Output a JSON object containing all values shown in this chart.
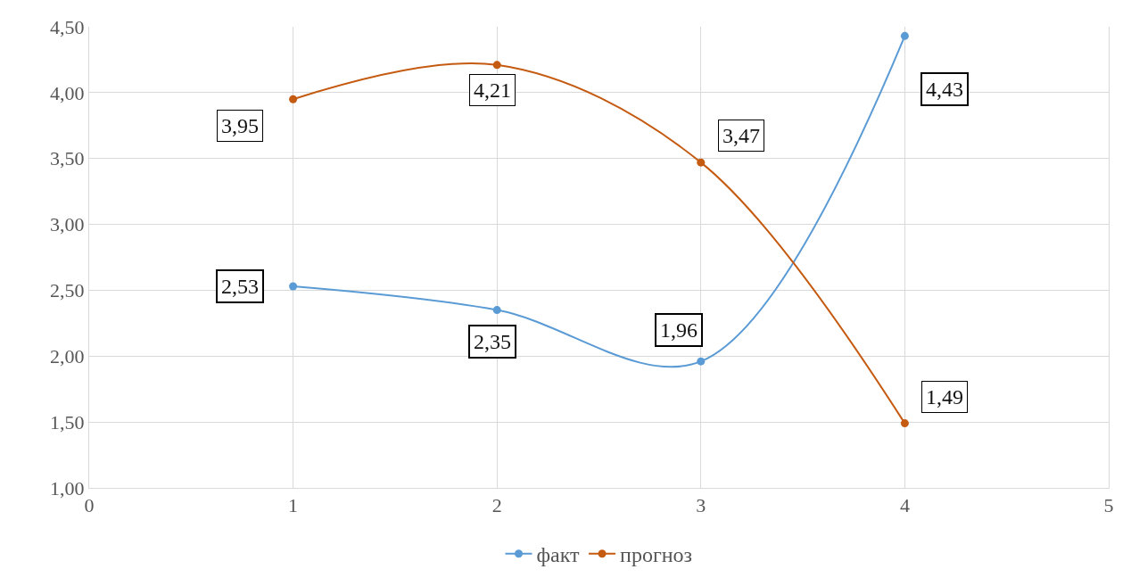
{
  "chart_data": {
    "type": "line",
    "x": [
      1,
      2,
      3,
      4
    ],
    "series": [
      {
        "name": "факт",
        "color": "#5b9bd5",
        "values": [
          2.53,
          2.35,
          1.96,
          4.43
        ],
        "value_labels": [
          "2,53",
          "2,35",
          "1,96",
          "4,43"
        ]
      },
      {
        "name": "прогноз",
        "color": "#c55a11",
        "values": [
          3.95,
          4.21,
          3.47,
          1.49
        ],
        "value_labels": [
          "3,95",
          "4,21",
          "3,47",
          "1,49"
        ]
      }
    ],
    "xlim": [
      0,
      5
    ],
    "xticks": [
      0,
      1,
      2,
      3,
      4,
      5
    ],
    "ylim": [
      1,
      4.5
    ],
    "yticks": [
      {
        "value": 1,
        "label": "1,00"
      },
      {
        "value": 1.5,
        "label": "1,50"
      },
      {
        "value": 2,
        "label": "2,00"
      },
      {
        "value": 2.5,
        "label": "2,50"
      },
      {
        "value": 3,
        "label": "3,00"
      },
      {
        "value": 3.5,
        "label": "3,50"
      },
      {
        "value": 4,
        "label": "4,00"
      },
      {
        "value": 4.5,
        "label": "4,50"
      }
    ],
    "grid": true,
    "legend": "bottom",
    "marker": "circle",
    "line_style": "solid"
  }
}
